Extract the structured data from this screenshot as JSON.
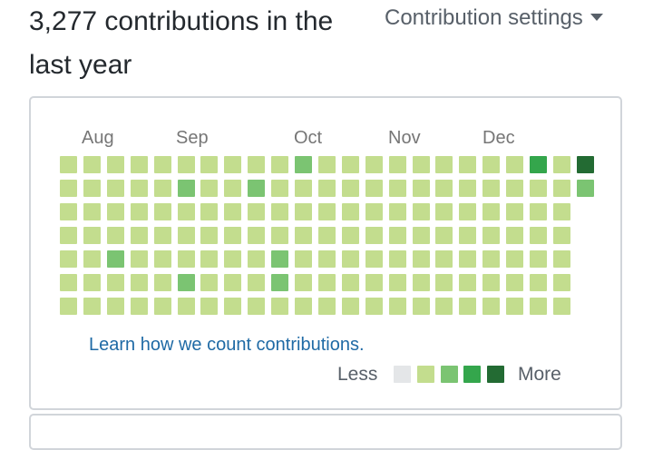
{
  "header": {
    "title": "3,277 contributions in the last year",
    "settings_label": "Contribution settings"
  },
  "graph": {
    "months": [
      "Aug",
      "Sep",
      "Oct",
      "Nov",
      "Dec"
    ],
    "levels": [
      [
        1,
        1,
        1,
        1,
        1,
        1,
        1,
        1,
        1,
        1,
        2,
        1,
        1,
        1,
        1,
        1,
        1,
        1,
        1,
        1,
        3,
        1,
        4
      ],
      [
        1,
        1,
        1,
        1,
        1,
        2,
        1,
        1,
        2,
        1,
        1,
        1,
        1,
        1,
        1,
        1,
        1,
        1,
        1,
        1,
        1,
        1,
        2
      ],
      [
        1,
        1,
        1,
        1,
        1,
        1,
        1,
        1,
        1,
        1,
        1,
        1,
        1,
        1,
        1,
        1,
        1,
        1,
        1,
        1,
        1,
        1,
        null
      ],
      [
        1,
        1,
        1,
        1,
        1,
        1,
        1,
        1,
        1,
        1,
        1,
        1,
        1,
        1,
        1,
        1,
        1,
        1,
        1,
        1,
        1,
        1,
        null
      ],
      [
        1,
        1,
        2,
        1,
        1,
        1,
        1,
        1,
        1,
        2,
        1,
        1,
        1,
        1,
        1,
        1,
        1,
        1,
        1,
        1,
        1,
        1,
        null
      ],
      [
        1,
        1,
        1,
        1,
        1,
        2,
        1,
        1,
        1,
        2,
        1,
        1,
        1,
        1,
        1,
        1,
        1,
        1,
        1,
        1,
        1,
        1,
        null
      ],
      [
        1,
        1,
        1,
        1,
        1,
        1,
        1,
        1,
        1,
        1,
        1,
        1,
        1,
        1,
        1,
        1,
        1,
        1,
        1,
        1,
        1,
        1,
        null
      ]
    ],
    "colors": [
      "#e4e6e8",
      "#c3dd8e",
      "#7bc472",
      "#34a64c",
      "#236b33"
    ]
  },
  "footer": {
    "learn_link": "Learn how we count contributions.",
    "less_label": "Less",
    "more_label": "More"
  }
}
